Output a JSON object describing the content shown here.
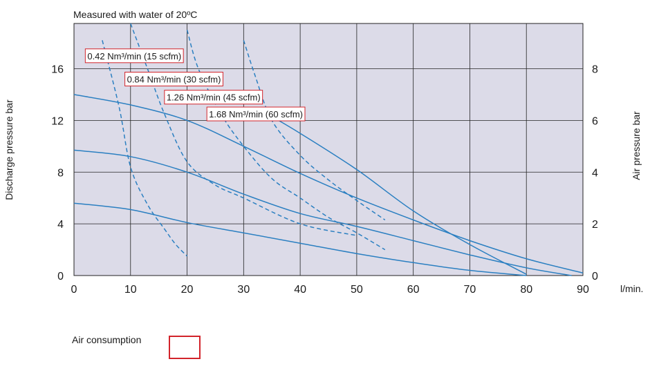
{
  "chart_data": {
    "type": "line",
    "title": "Measured with water of 20ºC",
    "xlabel": "",
    "x_unit": "l/min.",
    "ylabel": "Discharge pressure bar",
    "y2label": "Air pressure bar",
    "xlim": [
      0,
      90
    ],
    "ylim": [
      0,
      19.5
    ],
    "y2lim": [
      0,
      9.75
    ],
    "xticks": [
      "0",
      "10",
      "20",
      "30",
      "40",
      "50",
      "60",
      "70",
      "80",
      "90"
    ],
    "yticks": [
      "0",
      "4",
      "8",
      "12",
      "16"
    ],
    "y2ticks": [
      "0",
      "2",
      "4",
      "6",
      "8"
    ],
    "grid": true,
    "colors": {
      "plot_bg": "#dcdbe8",
      "line": "#2a7fc1",
      "grid": "#222222",
      "annotation_border": "#d2232a"
    },
    "series": [
      {
        "style": "solid",
        "x": [
          0,
          10,
          20,
          30,
          40,
          50,
          60,
          70,
          80,
          90
        ],
        "y": [
          14.0,
          13.2,
          12.0,
          10.0,
          7.9,
          6.0,
          4.3,
          2.7,
          1.3,
          0.2
        ]
      },
      {
        "style": "solid",
        "x": [
          0,
          10,
          20,
          30,
          40,
          50,
          60,
          70,
          80,
          88
        ],
        "y": [
          9.7,
          9.2,
          8.0,
          6.3,
          4.8,
          3.8,
          2.7,
          1.6,
          0.6,
          0.0
        ]
      },
      {
        "style": "solid",
        "x": [
          0,
          10,
          20,
          30,
          40,
          50,
          60,
          70,
          80
        ],
        "y": [
          5.6,
          5.1,
          4.1,
          3.3,
          2.5,
          1.7,
          1.0,
          0.4,
          0.0
        ]
      },
      {
        "style": "solid",
        "x": [
          35,
          40,
          50,
          60,
          70,
          80
        ],
        "y": [
          12.3,
          11.0,
          8.2,
          5.0,
          2.4,
          0.1
        ]
      },
      {
        "style": "dashed",
        "x": [
          5,
          8,
          10,
          13,
          16,
          18,
          20
        ],
        "y": [
          18.2,
          13.0,
          8.4,
          5.5,
          3.6,
          2.4,
          1.5
        ]
      },
      {
        "style": "dashed",
        "x": [
          10,
          13,
          16,
          20,
          25,
          30,
          40,
          50
        ],
        "y": [
          19.5,
          16.0,
          12.5,
          8.8,
          7.0,
          6.0,
          4.0,
          3.1
        ]
      },
      {
        "style": "dashed",
        "x": [
          20,
          22,
          26,
          30,
          35,
          40,
          45,
          50,
          55
        ],
        "y": [
          19.0,
          16.0,
          12.5,
          10.0,
          7.5,
          6.0,
          4.5,
          3.3,
          2.0
        ]
      },
      {
        "style": "dashed",
        "x": [
          30,
          32,
          35,
          40,
          45,
          50,
          55
        ],
        "y": [
          18.2,
          15.5,
          12.0,
          9.3,
          7.4,
          5.8,
          4.3
        ]
      }
    ],
    "annotations": [
      {
        "text": "0.42 Nm³/min (15 scfm)",
        "x": 2,
        "y": 17.0
      },
      {
        "text": "0.84 Nm³/min (30 scfm)",
        "x": 9,
        "y": 15.2
      },
      {
        "text": "1.26 Nm³/min (45 scfm)",
        "x": 16,
        "y": 13.8
      },
      {
        "text": "1.68 Nm³/min (60 scfm)",
        "x": 23.5,
        "y": 12.5
      }
    ]
  },
  "legend": {
    "label": "Air consumption"
  }
}
